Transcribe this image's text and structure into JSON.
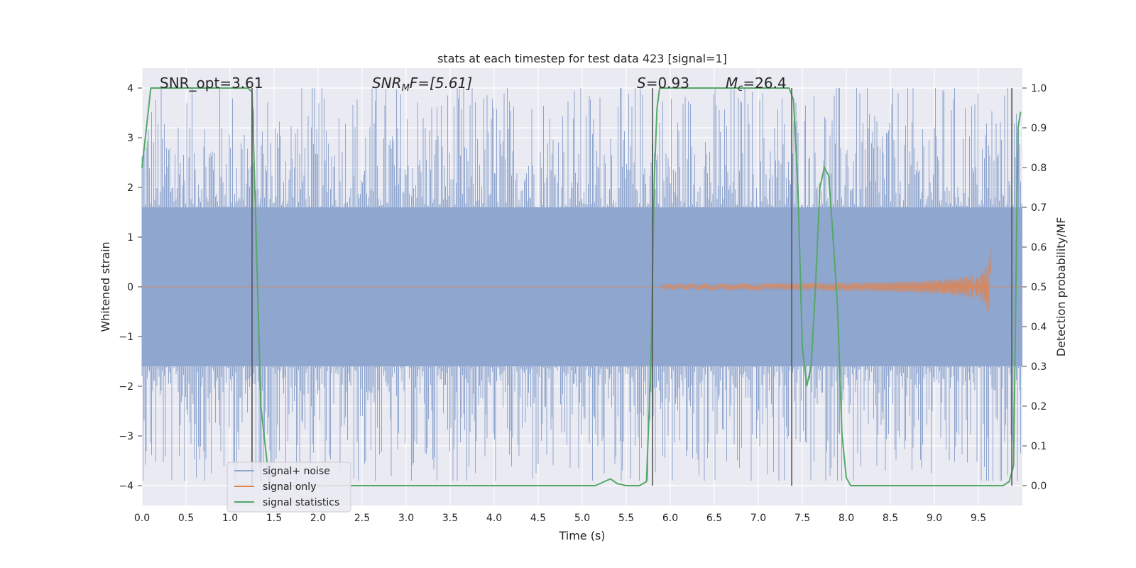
{
  "chart_data": {
    "type": "line",
    "title": "stats at each timestep for test data 423 [signal=1]",
    "xlabel": "Time (s)",
    "ylabel": "Whitened strain",
    "y2label": "Detection probability/MF",
    "xlim": [
      0,
      10
    ],
    "ylim": [
      -4.4,
      4.4
    ],
    "y2lim": [
      -0.05,
      1.05
    ],
    "xticks": [
      "0.0",
      "0.5",
      "1.0",
      "1.5",
      "2.0",
      "2.5",
      "3.0",
      "3.5",
      "4.0",
      "4.5",
      "5.0",
      "5.5",
      "6.0",
      "6.5",
      "7.0",
      "7.5",
      "8.0",
      "8.5",
      "9.0",
      "9.5"
    ],
    "yticks": [
      "4",
      "3",
      "2",
      "1",
      "0",
      "−1",
      "−2",
      "−3",
      "−4"
    ],
    "y2ticks": [
      "1.0",
      "0.9",
      "0.8",
      "0.7",
      "0.6",
      "0.5",
      "0.4",
      "0.3",
      "0.2",
      "0.1",
      "0.0"
    ],
    "annotations": {
      "snr_opt": "SNR_opt=3.61",
      "snr_mf_base": "SNR",
      "snr_mf_sub": "M",
      "snr_mf_rest": "F=[5.61]",
      "s_var": "S",
      "s_rest": "=0.93",
      "mc_var": "M",
      "mc_sub": "c",
      "mc_rest": "=26.4"
    },
    "legend": {
      "placement": "lower-left",
      "entries": [
        "signal+ noise",
        "signal only",
        "signal statistics"
      ]
    },
    "colors": {
      "noise": "#8fa6cf",
      "signal": "#dd8452",
      "stats": "#55a868",
      "vline": "#555555",
      "axes_bg": "#eaeaf2",
      "grid": "#ffffff"
    },
    "noise_band": {
      "core": [
        -1.6,
        1.6
      ],
      "envelope": [
        -2.6,
        2.6
      ]
    },
    "vertical_lines_x": [
      1.25,
      5.8,
      7.38,
      9.88
    ],
    "signal_only": {
      "start_x": 5.9,
      "peak_x": 9.65,
      "peak_amplitude": 0.95
    },
    "series": [
      {
        "name": "signal statistics",
        "x": [
          0.0,
          0.05,
          0.1,
          0.2,
          1.2,
          1.25,
          1.3,
          1.35,
          1.45,
          2.0,
          3.0,
          4.0,
          5.0,
          5.15,
          5.25,
          5.32,
          5.4,
          5.5,
          5.65,
          5.73,
          5.78,
          5.82,
          5.85,
          5.88,
          5.9,
          5.95,
          7.3,
          7.35,
          7.4,
          7.45,
          7.5,
          7.55,
          7.6,
          7.65,
          7.7,
          7.75,
          7.8,
          7.85,
          7.9,
          7.95,
          8.0,
          8.05,
          8.1,
          8.5,
          9.0,
          9.5,
          9.78,
          9.85,
          9.9,
          9.95,
          9.98
        ],
        "y": [
          0.8,
          0.9,
          1.0,
          1.0,
          1.0,
          0.99,
          0.6,
          0.2,
          0.0,
          0.0,
          0.0,
          0.0,
          0.0,
          0.0,
          0.01,
          0.017,
          0.005,
          0.0,
          0.0,
          0.01,
          0.3,
          0.78,
          0.95,
          1.0,
          1.0,
          1.0,
          1.0,
          1.0,
          0.97,
          0.75,
          0.35,
          0.25,
          0.3,
          0.5,
          0.75,
          0.8,
          0.78,
          0.62,
          0.45,
          0.13,
          0.02,
          0.0,
          0.0,
          0.0,
          0.0,
          0.0,
          0.0,
          0.01,
          0.05,
          0.9,
          0.94
        ]
      }
    ]
  }
}
